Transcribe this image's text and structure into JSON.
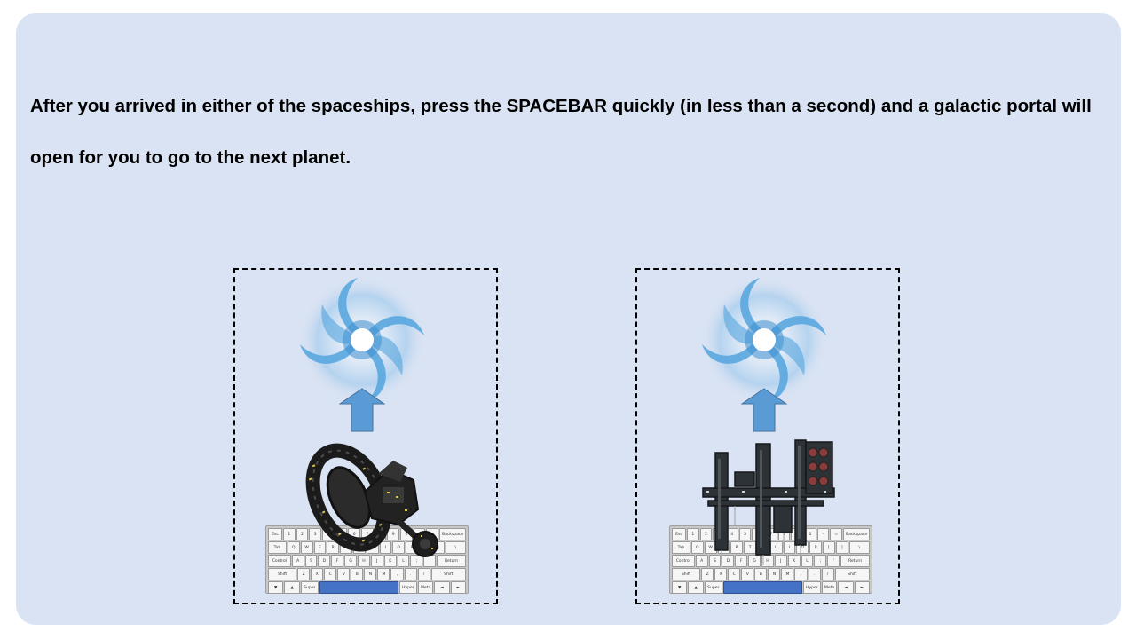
{
  "instruction": {
    "text": "After you arrived in either of the spaceships, press the SPACEBAR quickly (in less than a second) and a galactic portal will open for you to go to the next planet."
  },
  "panels": [
    {
      "id": "left",
      "ship": "ring-station-icon"
    },
    {
      "id": "right",
      "ship": "tower-station-icon"
    }
  ],
  "keyboard": {
    "rows": [
      [
        "Esc",
        "1",
        "2",
        "3",
        "4",
        "5",
        "6",
        "7",
        "8",
        "9",
        "0",
        "-",
        "=",
        "Backspace"
      ],
      [
        "Tab",
        "Q",
        "W",
        "E",
        "R",
        "T",
        "Y",
        "U",
        "I",
        "O",
        "P",
        "[",
        "]",
        "\\"
      ],
      [
        "Control",
        "A",
        "S",
        "D",
        "F",
        "G",
        "H",
        "J",
        "K",
        "L",
        ";",
        "'",
        "Return"
      ],
      [
        "Shift",
        "Z",
        "X",
        "C",
        "V",
        "B",
        "N",
        "M",
        ",",
        ".",
        "/",
        "Shift"
      ],
      [
        "▼",
        "▲",
        "Super",
        "",
        "Hyper",
        "Meta",
        "◄",
        "►"
      ]
    ]
  },
  "colors": {
    "slide_bg": "#dae3f3",
    "arrow": "#5b9bd5",
    "spacebar": "#4472c4",
    "portal": "#6fb5e6"
  }
}
